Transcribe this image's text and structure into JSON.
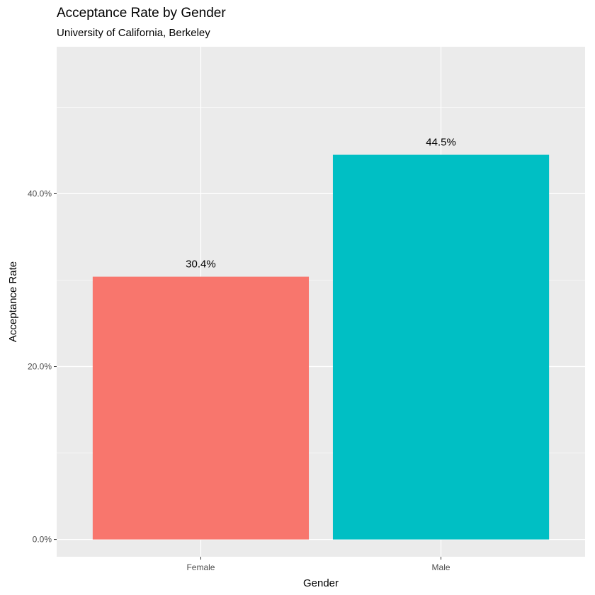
{
  "chart_data": {
    "type": "bar",
    "title": "Acceptance Rate by Gender",
    "subtitle": "University of California, Berkeley",
    "xlabel": "Gender",
    "ylabel": "Acceptance Rate",
    "categories": [
      "Female",
      "Male"
    ],
    "values": [
      0.304,
      0.445
    ],
    "data_labels": [
      "30.4%",
      "44.5%"
    ],
    "colors": [
      "#F8766D",
      "#00BFC4"
    ],
    "ylim": [
      -0.02,
      0.57
    ],
    "y_ticks": [
      0,
      0.2,
      0.4
    ],
    "y_tick_labels": [
      "0.0%",
      "20.0%",
      "40.0%"
    ],
    "grid": true,
    "panel_background": "#EBEBEB",
    "legend": "none"
  }
}
